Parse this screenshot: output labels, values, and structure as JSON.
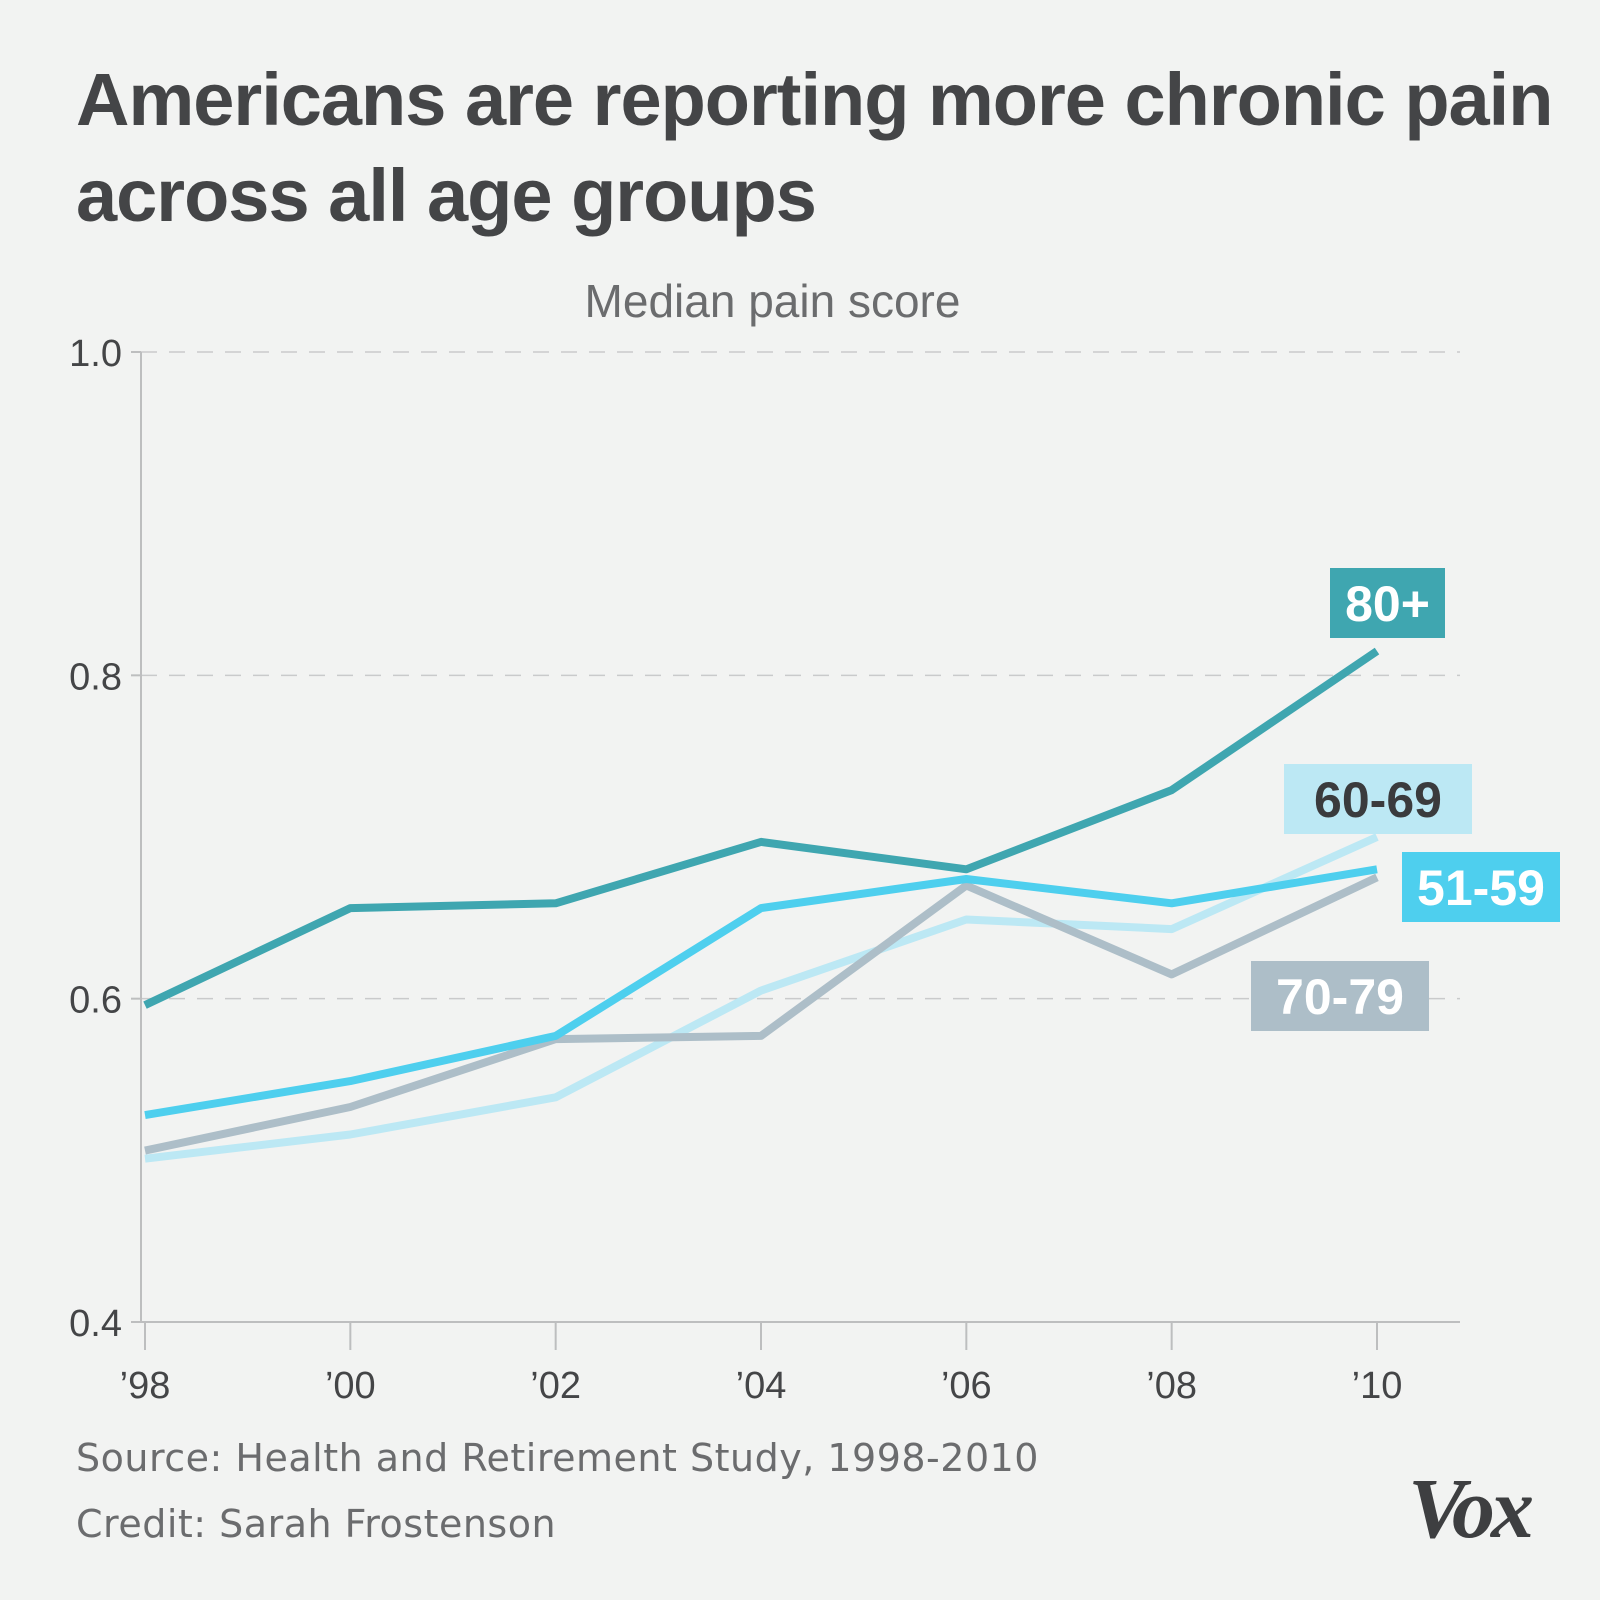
{
  "page": {
    "background": "#f2f3f2"
  },
  "header": {
    "title": "Americans are reporting more chronic pain across all age groups"
  },
  "footer": {
    "source": "Source: Health and Retirement Study, 1998-2010",
    "credit": "Credit: Sarah Frostenson",
    "logo": "Vox"
  },
  "chart_data": {
    "type": "line",
    "title": "Americans are reporting more chronic pain across all age groups",
    "subtitle": "Median pain score",
    "xlabel": "",
    "ylabel": "",
    "x": [
      1998,
      2000,
      2002,
      2004,
      2006,
      2008,
      2010
    ],
    "x_tick_labels": [
      "’98",
      "’00",
      "’02",
      "’04",
      "’06",
      "’08",
      "’10"
    ],
    "y_ticks": [
      0.4,
      0.6,
      0.8,
      1.0
    ],
    "y_tick_labels": [
      "0.4",
      "0.6",
      "0.8",
      "1.0"
    ],
    "ylim": [
      0.4,
      1.0
    ],
    "grid": "horizontal dashed",
    "legend": "direct labels at line ends",
    "series": [
      {
        "name": "80+",
        "color": "#3fa6b0",
        "label_text_color": "#ffffff",
        "values": [
          0.596,
          0.656,
          0.659,
          0.697,
          0.68,
          0.729,
          0.815
        ]
      },
      {
        "name": "60-69",
        "color": "#bce8f4",
        "label_text_color": "#3a3b3d",
        "values": [
          0.501,
          0.516,
          0.539,
          0.605,
          0.649,
          0.643,
          0.7
        ]
      },
      {
        "name": "70-79",
        "color": "#adbec8",
        "label_text_color": "#ffffff",
        "values": [
          0.506,
          0.533,
          0.575,
          0.577,
          0.67,
          0.615,
          0.675
        ]
      },
      {
        "name": "51-59",
        "color": "#4ecfee",
        "label_text_color": "#ffffff",
        "values": [
          0.528,
          0.549,
          0.577,
          0.656,
          0.674,
          0.659,
          0.68
        ]
      }
    ]
  }
}
